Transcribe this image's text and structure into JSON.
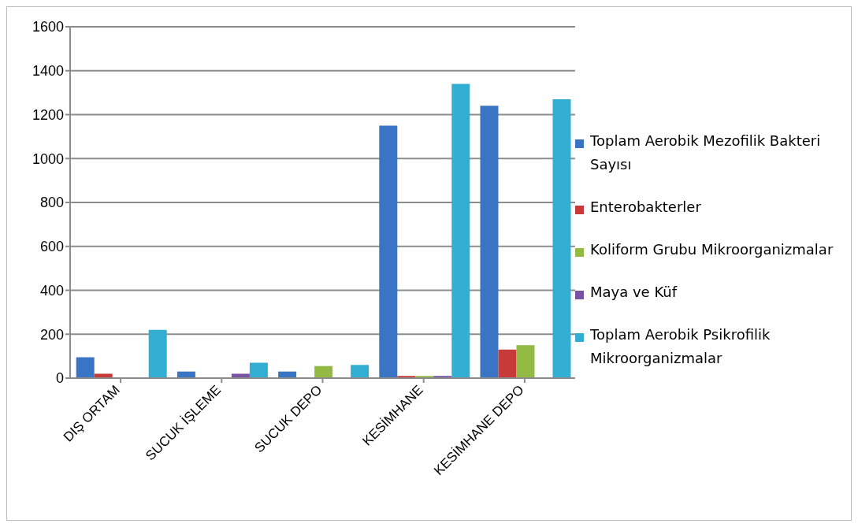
{
  "chart_data": {
    "type": "bar",
    "categories": [
      "DIŞ ORTAM",
      "SUCUK İŞLEME",
      "SUCUK DEPO",
      "KESİMHANE",
      "KESİMHANE DEPO"
    ],
    "series": [
      {
        "name": "Toplam Aerobik Mezofilik Bakteri Sayısı",
        "color": "#3a74c4",
        "values": [
          95,
          30,
          30,
          1150,
          1240
        ]
      },
      {
        "name": "Enterobakterler",
        "color": "#c8393a",
        "values": [
          20,
          null,
          null,
          10,
          130
        ]
      },
      {
        "name": "Koliform Grubu Mikroorganizmalar",
        "color": "#93bb44",
        "values": [
          null,
          null,
          55,
          10,
          150
        ]
      },
      {
        "name": "Maya ve Küf",
        "color": "#7853a3",
        "values": [
          null,
          20,
          null,
          10,
          null
        ]
      },
      {
        "name": "Toplam Aerobik Psikrofilik Mikroorganizmalar",
        "color": "#31aed2",
        "values": [
          220,
          70,
          60,
          1340,
          1270
        ]
      }
    ],
    "ylim": [
      0,
      1600
    ],
    "yticks": [
      0,
      200,
      400,
      600,
      800,
      1000,
      1200,
      1400,
      1600
    ],
    "grid": "y",
    "legend": "right"
  }
}
